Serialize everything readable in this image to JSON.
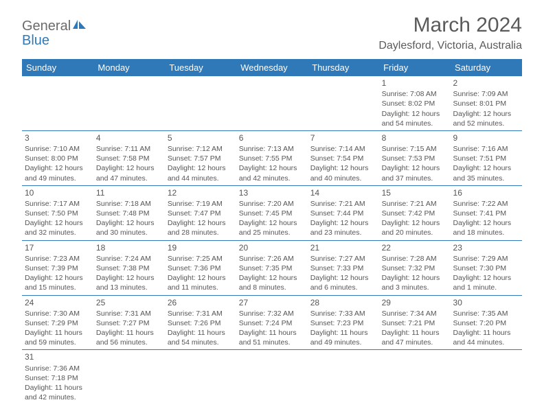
{
  "logo": {
    "text1": "General",
    "text2": "Blue"
  },
  "title": "March 2024",
  "location": "Daylesford, Victoria, Australia",
  "colors": {
    "header_bg": "#3079b8",
    "header_text": "#ffffff",
    "text": "#555555",
    "logo_gray": "#6b6b6b",
    "logo_blue": "#3079b8"
  },
  "dow": [
    "Sunday",
    "Monday",
    "Tuesday",
    "Wednesday",
    "Thursday",
    "Friday",
    "Saturday"
  ],
  "weeks": [
    [
      null,
      null,
      null,
      null,
      null,
      {
        "n": "1",
        "sr": "Sunrise: 7:08 AM",
        "ss": "Sunset: 8:02 PM",
        "d1": "Daylight: 12 hours",
        "d2": "and 54 minutes."
      },
      {
        "n": "2",
        "sr": "Sunrise: 7:09 AM",
        "ss": "Sunset: 8:01 PM",
        "d1": "Daylight: 12 hours",
        "d2": "and 52 minutes."
      }
    ],
    [
      {
        "n": "3",
        "sr": "Sunrise: 7:10 AM",
        "ss": "Sunset: 8:00 PM",
        "d1": "Daylight: 12 hours",
        "d2": "and 49 minutes."
      },
      {
        "n": "4",
        "sr": "Sunrise: 7:11 AM",
        "ss": "Sunset: 7:58 PM",
        "d1": "Daylight: 12 hours",
        "d2": "and 47 minutes."
      },
      {
        "n": "5",
        "sr": "Sunrise: 7:12 AM",
        "ss": "Sunset: 7:57 PM",
        "d1": "Daylight: 12 hours",
        "d2": "and 44 minutes."
      },
      {
        "n": "6",
        "sr": "Sunrise: 7:13 AM",
        "ss": "Sunset: 7:55 PM",
        "d1": "Daylight: 12 hours",
        "d2": "and 42 minutes."
      },
      {
        "n": "7",
        "sr": "Sunrise: 7:14 AM",
        "ss": "Sunset: 7:54 PM",
        "d1": "Daylight: 12 hours",
        "d2": "and 40 minutes."
      },
      {
        "n": "8",
        "sr": "Sunrise: 7:15 AM",
        "ss": "Sunset: 7:53 PM",
        "d1": "Daylight: 12 hours",
        "d2": "and 37 minutes."
      },
      {
        "n": "9",
        "sr": "Sunrise: 7:16 AM",
        "ss": "Sunset: 7:51 PM",
        "d1": "Daylight: 12 hours",
        "d2": "and 35 minutes."
      }
    ],
    [
      {
        "n": "10",
        "sr": "Sunrise: 7:17 AM",
        "ss": "Sunset: 7:50 PM",
        "d1": "Daylight: 12 hours",
        "d2": "and 32 minutes."
      },
      {
        "n": "11",
        "sr": "Sunrise: 7:18 AM",
        "ss": "Sunset: 7:48 PM",
        "d1": "Daylight: 12 hours",
        "d2": "and 30 minutes."
      },
      {
        "n": "12",
        "sr": "Sunrise: 7:19 AM",
        "ss": "Sunset: 7:47 PM",
        "d1": "Daylight: 12 hours",
        "d2": "and 28 minutes."
      },
      {
        "n": "13",
        "sr": "Sunrise: 7:20 AM",
        "ss": "Sunset: 7:45 PM",
        "d1": "Daylight: 12 hours",
        "d2": "and 25 minutes."
      },
      {
        "n": "14",
        "sr": "Sunrise: 7:21 AM",
        "ss": "Sunset: 7:44 PM",
        "d1": "Daylight: 12 hours",
        "d2": "and 23 minutes."
      },
      {
        "n": "15",
        "sr": "Sunrise: 7:21 AM",
        "ss": "Sunset: 7:42 PM",
        "d1": "Daylight: 12 hours",
        "d2": "and 20 minutes."
      },
      {
        "n": "16",
        "sr": "Sunrise: 7:22 AM",
        "ss": "Sunset: 7:41 PM",
        "d1": "Daylight: 12 hours",
        "d2": "and 18 minutes."
      }
    ],
    [
      {
        "n": "17",
        "sr": "Sunrise: 7:23 AM",
        "ss": "Sunset: 7:39 PM",
        "d1": "Daylight: 12 hours",
        "d2": "and 15 minutes."
      },
      {
        "n": "18",
        "sr": "Sunrise: 7:24 AM",
        "ss": "Sunset: 7:38 PM",
        "d1": "Daylight: 12 hours",
        "d2": "and 13 minutes."
      },
      {
        "n": "19",
        "sr": "Sunrise: 7:25 AM",
        "ss": "Sunset: 7:36 PM",
        "d1": "Daylight: 12 hours",
        "d2": "and 11 minutes."
      },
      {
        "n": "20",
        "sr": "Sunrise: 7:26 AM",
        "ss": "Sunset: 7:35 PM",
        "d1": "Daylight: 12 hours",
        "d2": "and 8 minutes."
      },
      {
        "n": "21",
        "sr": "Sunrise: 7:27 AM",
        "ss": "Sunset: 7:33 PM",
        "d1": "Daylight: 12 hours",
        "d2": "and 6 minutes."
      },
      {
        "n": "22",
        "sr": "Sunrise: 7:28 AM",
        "ss": "Sunset: 7:32 PM",
        "d1": "Daylight: 12 hours",
        "d2": "and 3 minutes."
      },
      {
        "n": "23",
        "sr": "Sunrise: 7:29 AM",
        "ss": "Sunset: 7:30 PM",
        "d1": "Daylight: 12 hours",
        "d2": "and 1 minute."
      }
    ],
    [
      {
        "n": "24",
        "sr": "Sunrise: 7:30 AM",
        "ss": "Sunset: 7:29 PM",
        "d1": "Daylight: 11 hours",
        "d2": "and 59 minutes."
      },
      {
        "n": "25",
        "sr": "Sunrise: 7:31 AM",
        "ss": "Sunset: 7:27 PM",
        "d1": "Daylight: 11 hours",
        "d2": "and 56 minutes."
      },
      {
        "n": "26",
        "sr": "Sunrise: 7:31 AM",
        "ss": "Sunset: 7:26 PM",
        "d1": "Daylight: 11 hours",
        "d2": "and 54 minutes."
      },
      {
        "n": "27",
        "sr": "Sunrise: 7:32 AM",
        "ss": "Sunset: 7:24 PM",
        "d1": "Daylight: 11 hours",
        "d2": "and 51 minutes."
      },
      {
        "n": "28",
        "sr": "Sunrise: 7:33 AM",
        "ss": "Sunset: 7:23 PM",
        "d1": "Daylight: 11 hours",
        "d2": "and 49 minutes."
      },
      {
        "n": "29",
        "sr": "Sunrise: 7:34 AM",
        "ss": "Sunset: 7:21 PM",
        "d1": "Daylight: 11 hours",
        "d2": "and 47 minutes."
      },
      {
        "n": "30",
        "sr": "Sunrise: 7:35 AM",
        "ss": "Sunset: 7:20 PM",
        "d1": "Daylight: 11 hours",
        "d2": "and 44 minutes."
      }
    ],
    [
      {
        "n": "31",
        "sr": "Sunrise: 7:36 AM",
        "ss": "Sunset: 7:18 PM",
        "d1": "Daylight: 11 hours",
        "d2": "and 42 minutes."
      },
      null,
      null,
      null,
      null,
      null,
      null
    ]
  ]
}
